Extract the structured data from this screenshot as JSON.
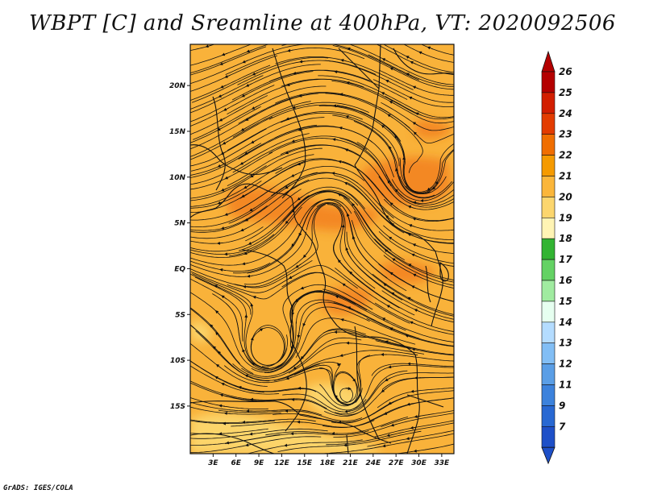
{
  "title": "WBPT [C] and Sreamline at 400hPa, VT: 2020092506",
  "credit": "GrADS: IGES/COLA",
  "map": {
    "lat_labels": [
      "20N",
      "15N",
      "10N",
      "5N",
      "EQ",
      "5S",
      "10S",
      "15S"
    ],
    "lat_values": [
      20,
      15,
      10,
      5,
      0,
      -5,
      -10,
      -15
    ],
    "lon_labels": [
      "3E",
      "6E",
      "9E",
      "12E",
      "15E",
      "18E",
      "21E",
      "24E",
      "27E",
      "30E",
      "33E"
    ],
    "lon_values": [
      3,
      6,
      9,
      12,
      15,
      18,
      21,
      24,
      27,
      30,
      33
    ]
  },
  "colorbar": {
    "labels": [
      "26",
      "25",
      "24",
      "23",
      "22",
      "21",
      "20",
      "19",
      "18",
      "17",
      "16",
      "15",
      "14",
      "13",
      "12",
      "11",
      "9",
      "7"
    ],
    "colors": [
      "#b40000",
      "#d21e00",
      "#e33c00",
      "#f06e00",
      "#f59a00",
      "#fbb63a",
      "#fcd66e",
      "#fff4b4",
      "#32b432",
      "#64d264",
      "#a0eba0",
      "#e6fff0",
      "#b4dcff",
      "#82bef5",
      "#5a9ee6",
      "#3c82dc",
      "#2868d2",
      "#1e50c8"
    ]
  },
  "colors": {
    "field_base": "#f9b23a",
    "warm_patch": "#f2801e",
    "cool_patch": "#fcd870"
  }
}
